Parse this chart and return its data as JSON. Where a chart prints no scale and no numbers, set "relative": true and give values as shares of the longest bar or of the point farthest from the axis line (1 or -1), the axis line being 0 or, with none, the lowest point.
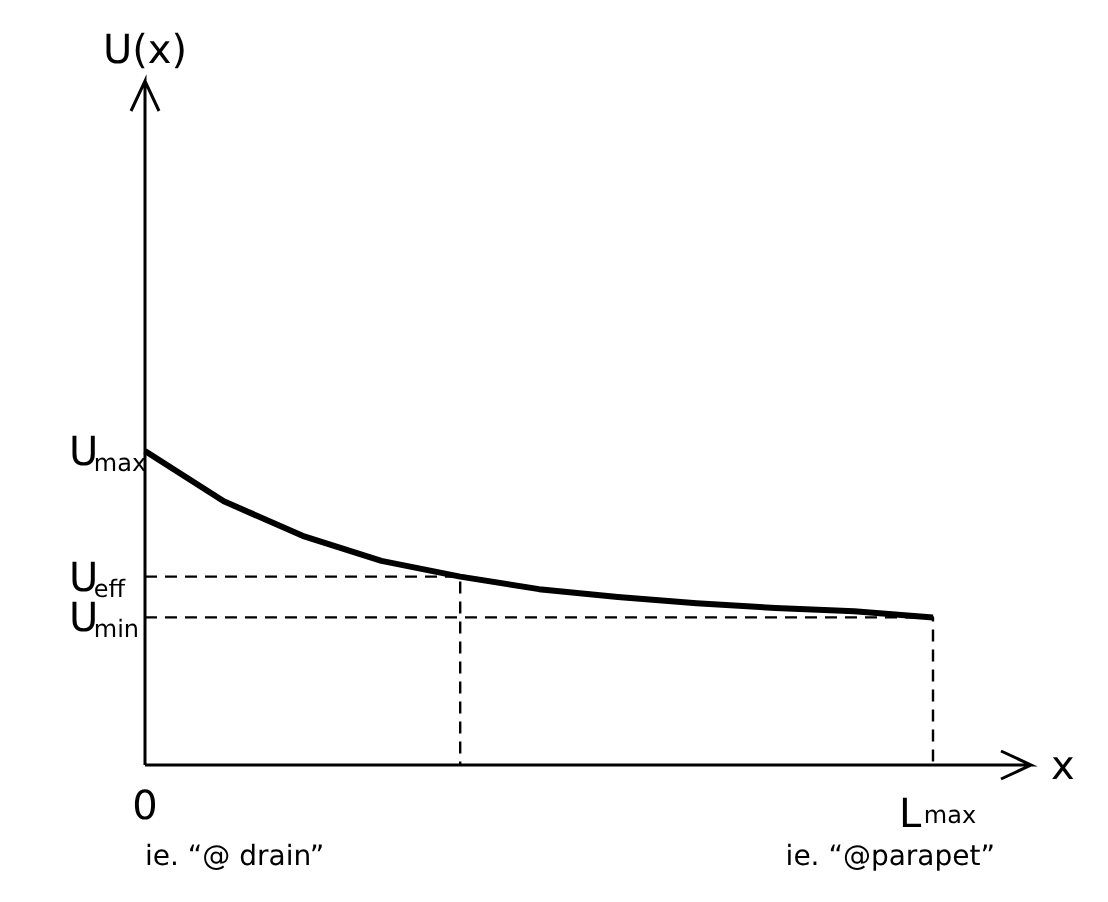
{
  "chart_data": {
    "type": "line",
    "relative": true,
    "xlabel": "x",
    "categories": [
      "0",
      null,
      null,
      null,
      null,
      null,
      null,
      null,
      null,
      null,
      "L$_{max}$"
    ],
    "series": [
      {
        "color": "#000000",
        "values": [
          1.0,
          0.84,
          0.73,
          0.65,
          0.6,
          0.56,
          0.535,
          0.515,
          0.5,
          0.49,
          0.47
        ]
      }
    ],
    "ref_lines": [
      {
        "axis": "y",
        "value": 0.6,
        "label": "U$_{eff}$",
        "color": "#000000",
        "line_style": "dashed"
      },
      {
        "axis": "y",
        "value": 0.47,
        "label": "U$_{min}$",
        "color": "#000000",
        "line_style": "dashed"
      }
    ],
    "annotations": [
      "U(x)",
      "U$_{max}$",
      "ie. “@ drain”",
      "ie. “@parapet”"
    ],
    "line_style": "solid",
    "grid": false
  }
}
